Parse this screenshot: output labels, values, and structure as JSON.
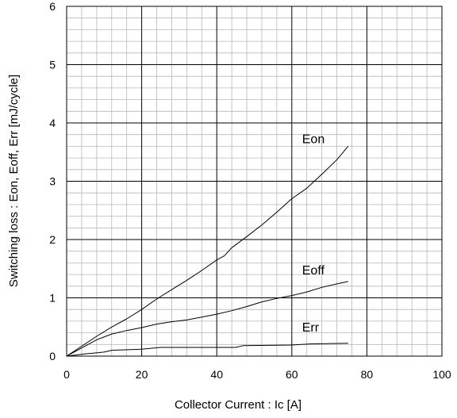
{
  "chart_data": {
    "type": "line",
    "xlabel": "Collector Current : Ic [A]",
    "ylabel": "Switching loss : Eon, Eoff, Err [mJ/cycle]",
    "xlim": [
      0,
      100
    ],
    "ylim": [
      0,
      6
    ],
    "xticks": [
      0,
      20,
      40,
      60,
      80,
      100
    ],
    "yticks": [
      0,
      1,
      2,
      3,
      4,
      5,
      6
    ],
    "x_major_step": 20,
    "x_minor_step": 4,
    "y_major_step": 1,
    "y_minor_step": 0.2,
    "grid": true,
    "series": [
      {
        "name": "Eon",
        "label_at": [
          44,
          3.65
        ],
        "points": [
          [
            0,
            0
          ],
          [
            4,
            0.17
          ],
          [
            8,
            0.34
          ],
          [
            12,
            0.5
          ],
          [
            16,
            0.64
          ],
          [
            20,
            0.8
          ],
          [
            24,
            0.98
          ],
          [
            28,
            1.14
          ],
          [
            32,
            1.3
          ],
          [
            36,
            1.47
          ],
          [
            40,
            1.65
          ],
          [
            42,
            1.72
          ],
          [
            44,
            1.86
          ],
          [
            48,
            2.05
          ],
          [
            52,
            2.25
          ],
          [
            56,
            2.47
          ],
          [
            60,
            2.7
          ],
          [
            64,
            2.88
          ],
          [
            68,
            3.12
          ],
          [
            72,
            3.37
          ],
          [
            75,
            3.6
          ]
        ]
      },
      {
        "name": "Eoff",
        "label_at": [
          44,
          1.4
        ],
        "points": [
          [
            0,
            0
          ],
          [
            4,
            0.14
          ],
          [
            8,
            0.28
          ],
          [
            12,
            0.38
          ],
          [
            16,
            0.44
          ],
          [
            20,
            0.49
          ],
          [
            24,
            0.55
          ],
          [
            28,
            0.59
          ],
          [
            32,
            0.62
          ],
          [
            36,
            0.67
          ],
          [
            40,
            0.72
          ],
          [
            44,
            0.78
          ],
          [
            48,
            0.85
          ],
          [
            52,
            0.93
          ],
          [
            56,
            0.99
          ],
          [
            60,
            1.04
          ],
          [
            64,
            1.1
          ],
          [
            68,
            1.18
          ],
          [
            72,
            1.24
          ],
          [
            75,
            1.28
          ]
        ]
      },
      {
        "name": "Err",
        "label_at": [
          44,
          0.42
        ],
        "points": [
          [
            0,
            0
          ],
          [
            5,
            0.04
          ],
          [
            10,
            0.07
          ],
          [
            12,
            0.1
          ],
          [
            20,
            0.12
          ],
          [
            25,
            0.15
          ],
          [
            45,
            0.15
          ],
          [
            47,
            0.18
          ],
          [
            60,
            0.19
          ],
          [
            65,
            0.21
          ],
          [
            75,
            0.22
          ]
        ]
      }
    ]
  }
}
